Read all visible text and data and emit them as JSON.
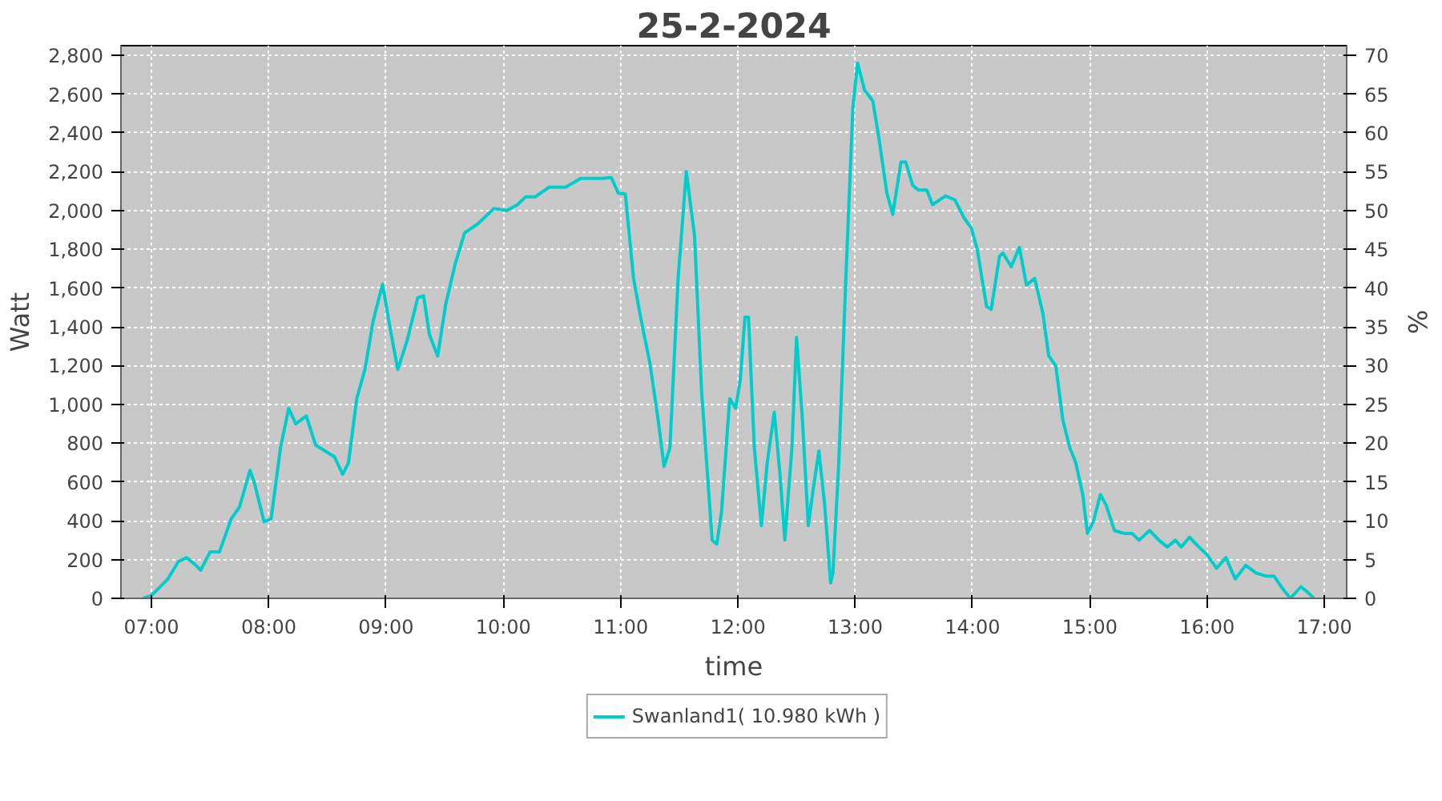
{
  "chart_data": {
    "type": "line",
    "title": "25-2-2024",
    "xlabel": "time",
    "ylabel": "Watt",
    "y2label": "%",
    "xlim": [
      6.74,
      17.19
    ],
    "xticks": [
      {
        "value": 7,
        "label": "07:00"
      },
      {
        "value": 8,
        "label": "08:00"
      },
      {
        "value": 9,
        "label": "09:00"
      },
      {
        "value": 10,
        "label": "10:00"
      },
      {
        "value": 11,
        "label": "11:00"
      },
      {
        "value": 12,
        "label": "12:00"
      },
      {
        "value": 13,
        "label": "13:00"
      },
      {
        "value": 14,
        "label": "14:00"
      },
      {
        "value": 15,
        "label": "15:00"
      },
      {
        "value": 16,
        "label": "16:00"
      },
      {
        "value": 17,
        "label": "17:00"
      }
    ],
    "ylim": [
      0,
      2850
    ],
    "yticks": [
      0,
      200,
      400,
      600,
      800,
      {
        "value": 1000,
        "label": "1,000"
      },
      {
        "value": 1200,
        "label": "1,200"
      },
      {
        "value": 1400,
        "label": "1,400"
      },
      {
        "value": 1600,
        "label": "1,600"
      },
      {
        "value": 1800,
        "label": "1,800"
      },
      {
        "value": 2000,
        "label": "2,000"
      },
      {
        "value": 2200,
        "label": "2,200"
      },
      {
        "value": 2400,
        "label": "2,400"
      },
      {
        "value": 2600,
        "label": "2,600"
      },
      {
        "value": 2800,
        "label": "2,800"
      }
    ],
    "y2lim": [
      0,
      71.25
    ],
    "y2ticks": [
      0,
      5,
      10,
      15,
      20,
      25,
      30,
      35,
      40,
      45,
      50,
      55,
      60,
      65,
      70
    ],
    "grid": true,
    "legend": "bottom",
    "line_style": "solid",
    "series": [
      {
        "name": "Swanland1( 10.980 kWh )",
        "color": "#00cccc",
        "x": [
          6.93,
          7.0,
          7.14,
          7.23,
          7.3,
          7.37,
          7.42,
          7.5,
          7.58,
          7.68,
          7.75,
          7.84,
          7.88,
          7.96,
          8.02,
          8.1,
          8.17,
          8.23,
          8.32,
          8.4,
          8.48,
          8.56,
          8.63,
          8.68,
          8.75,
          8.82,
          8.89,
          8.97,
          9.04,
          9.1,
          9.18,
          9.27,
          9.32,
          9.37,
          9.44,
          9.51,
          9.59,
          9.67,
          9.78,
          9.92,
          10.03,
          10.12,
          10.19,
          10.27,
          10.39,
          10.53,
          10.66,
          10.84,
          10.92,
          10.98,
          11.04,
          11.11,
          11.17,
          11.25,
          11.32,
          11.37,
          11.42,
          11.49,
          11.56,
          11.63,
          11.69,
          11.78,
          11.82,
          11.86,
          11.93,
          11.98,
          12.02,
          12.06,
          12.09,
          12.14,
          12.2,
          12.25,
          12.31,
          12.36,
          12.4,
          12.46,
          12.5,
          12.55,
          12.6,
          12.64,
          12.69,
          12.74,
          12.79,
          12.81,
          12.86,
          12.92,
          12.98,
          13.02,
          13.08,
          13.15,
          13.2,
          13.27,
          13.32,
          13.39,
          13.43,
          13.49,
          13.54,
          13.61,
          13.66,
          13.77,
          13.85,
          13.93,
          13.99,
          14.04,
          14.12,
          14.16,
          14.23,
          14.26,
          14.33,
          14.4,
          14.46,
          14.53,
          14.6,
          14.65,
          14.71,
          14.77,
          14.83,
          14.88,
          14.94,
          14.98,
          15.03,
          15.09,
          15.14,
          15.21,
          15.29,
          15.36,
          15.42,
          15.51,
          15.59,
          15.66,
          15.73,
          15.78,
          15.85,
          15.93,
          16.0,
          16.08,
          16.16,
          16.24,
          16.33,
          16.42,
          16.5,
          16.57,
          16.65,
          16.71,
          16.8,
          16.86,
          16.91
        ],
        "values": [
          0,
          15,
          100,
          190,
          210,
          175,
          145,
          240,
          240,
          410,
          470,
          660,
          590,
          395,
          410,
          775,
          980,
          900,
          940,
          790,
          760,
          730,
          640,
          700,
          1030,
          1180,
          1430,
          1620,
          1375,
          1180,
          1330,
          1550,
          1560,
          1360,
          1250,
          1520,
          1725,
          1885,
          1930,
          2010,
          2000,
          2030,
          2070,
          2070,
          2120,
          2120,
          2165,
          2165,
          2170,
          2090,
          2085,
          1650,
          1450,
          1210,
          920,
          680,
          775,
          1650,
          2200,
          1870,
          1070,
          300,
          280,
          445,
          1030,
          980,
          1125,
          1450,
          1450,
          775,
          375,
          700,
          960,
          630,
          300,
          775,
          1345,
          920,
          375,
          555,
          760,
          480,
          80,
          130,
          700,
          1650,
          2530,
          2760,
          2620,
          2565,
          2380,
          2090,
          1980,
          2250,
          2250,
          2130,
          2105,
          2105,
          2030,
          2075,
          2055,
          1960,
          1910,
          1800,
          1505,
          1490,
          1765,
          1780,
          1710,
          1810,
          1615,
          1650,
          1470,
          1250,
          1200,
          920,
          775,
          700,
          535,
          335,
          395,
          535,
          480,
          350,
          335,
          335,
          300,
          350,
          300,
          265,
          300,
          265,
          315,
          265,
          225,
          155,
          210,
          100,
          170,
          130,
          115,
          115,
          45,
          0,
          60,
          30,
          0
        ]
      }
    ]
  }
}
